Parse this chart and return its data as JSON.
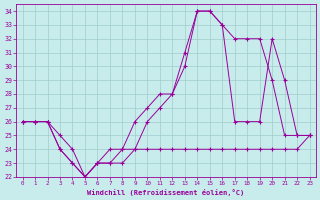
{
  "xlabel": "Windchill (Refroidissement éolien,°C)",
  "xlim": [
    -0.5,
    23.5
  ],
  "ylim": [
    22,
    34.5
  ],
  "yticks": [
    22,
    23,
    24,
    25,
    26,
    27,
    28,
    29,
    30,
    31,
    32,
    33,
    34
  ],
  "xticks": [
    0,
    1,
    2,
    3,
    4,
    5,
    6,
    7,
    8,
    9,
    10,
    11,
    12,
    13,
    14,
    15,
    16,
    17,
    18,
    19,
    20,
    21,
    22,
    23
  ],
  "background_color": "#c8ecec",
  "line_color": "#990099",
  "grid_color": "#a0cccc",
  "line1_x": [
    0,
    1,
    2,
    3,
    4,
    5,
    6,
    7,
    8,
    9,
    10,
    11,
    12,
    13,
    14,
    15,
    16,
    17,
    18,
    19,
    20,
    21,
    22,
    23
  ],
  "line1_y": [
    26,
    26,
    26,
    25,
    24,
    22,
    23,
    24,
    24,
    26,
    27,
    28,
    28,
    31,
    34,
    34,
    33,
    32,
    32,
    32,
    29,
    25,
    25,
    25
  ],
  "line2_x": [
    0,
    1,
    2,
    3,
    4,
    5,
    6,
    7,
    8,
    9,
    10,
    11,
    12,
    13,
    14,
    15,
    16,
    17,
    18,
    19,
    20,
    21,
    22,
    23
  ],
  "line2_y": [
    26,
    26,
    26,
    24,
    23,
    22,
    23,
    23,
    24,
    24,
    26,
    27,
    28,
    30,
    34,
    34,
    33,
    26,
    26,
    26,
    32,
    29,
    25,
    25
  ],
  "line3_x": [
    0,
    1,
    2,
    3,
    4,
    5,
    6,
    7,
    8,
    9,
    10,
    11,
    12,
    13,
    14,
    15,
    16,
    17,
    18,
    19,
    20,
    21,
    22,
    23
  ],
  "line3_y": [
    26,
    26,
    26,
    24,
    23,
    22,
    23,
    23,
    23,
    24,
    24,
    24,
    24,
    24,
    24,
    24,
    24,
    24,
    24,
    24,
    24,
    24,
    24,
    25
  ]
}
